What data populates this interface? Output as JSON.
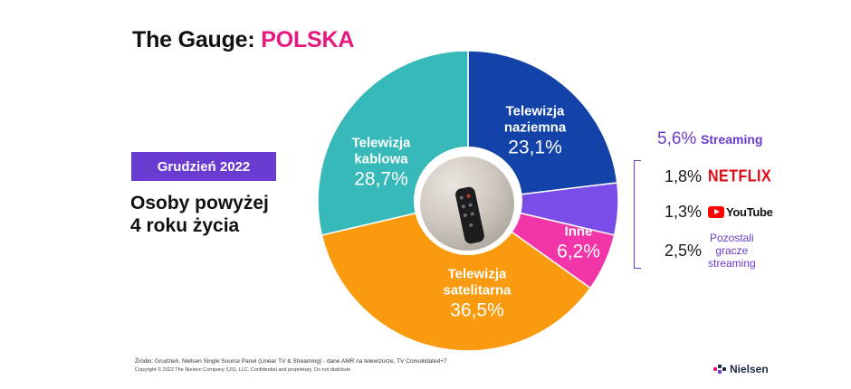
{
  "title": {
    "prefix": "The Gauge:",
    "accent": "POLSKA"
  },
  "badge": "Grudzień 2022",
  "subtitle": {
    "line1": "Osoby powyżej",
    "line2": "4 roku życia"
  },
  "chart_data": {
    "type": "pie",
    "inner_ring": true,
    "slices": [
      {
        "name_line1": "Telewizja",
        "name_line2": "naziemna",
        "value": 23.1,
        "label": "23,1%",
        "color": "#1343a8"
      },
      {
        "name_line1": "",
        "name_line2": "",
        "value": 5.6,
        "label": "",
        "color": "#7a4de8"
      },
      {
        "name_line1": "Inne",
        "name_line2": "",
        "value": 6.2,
        "label": "6,2%",
        "color": "#f235a8"
      },
      {
        "name_line1": "Telewizja",
        "name_line2": "satelitarna",
        "value": 36.5,
        "label": "36,5%",
        "color": "#fa9a0f"
      },
      {
        "name_line1": "Telewizja",
        "name_line2": "kablowa",
        "value": 28.7,
        "label": "28,7%",
        "color": "#37b9b9"
      }
    ]
  },
  "streaming": {
    "total": {
      "pct": "5,6%",
      "label": "Streaming"
    },
    "items": [
      {
        "pct": "1,8%",
        "label": "NETFLIX",
        "icon": "netflix-logo"
      },
      {
        "pct": "1,3%",
        "label": "YouTube",
        "icon": "youtube-logo"
      },
      {
        "pct": "2,5%",
        "label_lines": [
          "Pozostali",
          "gracze",
          "streaming"
        ]
      }
    ]
  },
  "footer": {
    "source": "Źródło: Grudzień, Nielsen Single Source Panel (Linear TV & Streaming) - dane AMR na telewizorze, TV Consolidated+7",
    "copyright": "Copyright © 2022 The Nielsen Company (US), LLC. Confidential and proprietary. Do not distribute.",
    "brand": "Nielsen"
  }
}
